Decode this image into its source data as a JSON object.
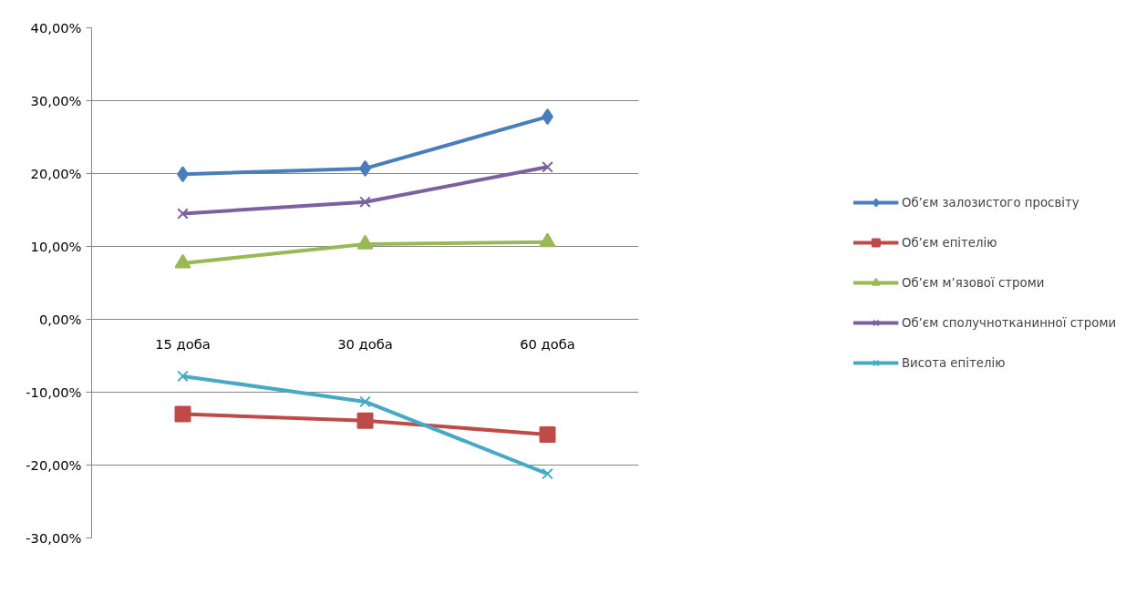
{
  "chart_data": {
    "type": "line",
    "categories": [
      "15 доба",
      "30 доба",
      "60 доба"
    ],
    "series": [
      {
        "name": "Об’єм залозистого просвіту",
        "color": "#4a7ebb",
        "marker": "diamond",
        "values": [
          19.9,
          20.7,
          27.8
        ]
      },
      {
        "name": "Об’єм епітелію",
        "color": "#be4b48",
        "marker": "square",
        "values": [
          -13.0,
          -13.9,
          -15.8
        ]
      },
      {
        "name": "Об’єм м’язової строми",
        "color": "#98b954",
        "marker": "triangle",
        "values": [
          7.7,
          10.3,
          10.6
        ]
      },
      {
        "name": "Об’єм сполучнотканинної строми",
        "color": "#7d60a0",
        "marker": "cross",
        "values": [
          14.5,
          16.1,
          20.9
        ]
      },
      {
        "name": "Висота епітелію",
        "color": "#46aac5",
        "marker": "cross",
        "values": [
          -7.8,
          -11.3,
          -21.2
        ]
      }
    ],
    "ylim": [
      -30,
      40
    ],
    "yticks": [
      {
        "value": -30,
        "label": "-30,00%"
      },
      {
        "value": -20,
        "label": "-20,00%"
      },
      {
        "value": -10,
        "label": "-10,00%"
      },
      {
        "value": 0,
        "label": "0,00%"
      },
      {
        "value": 10,
        "label": "10,00%"
      },
      {
        "value": 20,
        "label": "20,00%"
      },
      {
        "value": 30,
        "label": "30,00%"
      },
      {
        "value": 40,
        "label": "40,00%"
      }
    ],
    "grid": "y",
    "legend": "right",
    "line_style": "solid"
  }
}
